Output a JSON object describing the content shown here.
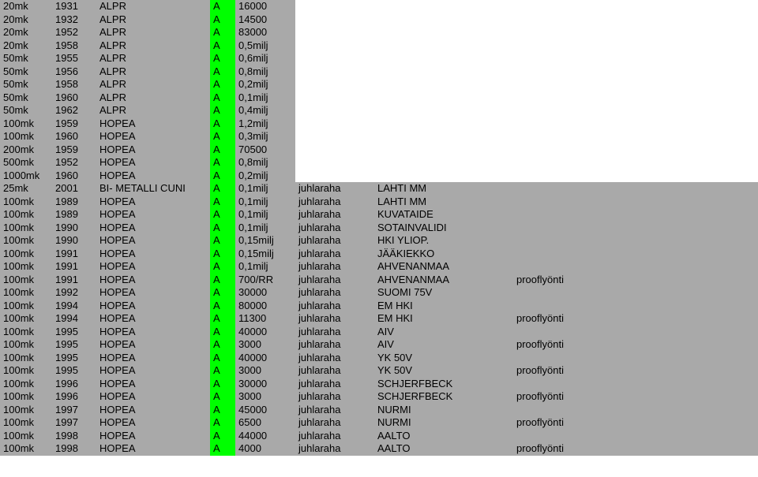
{
  "colors": {
    "gray_bg": "#a9a9a9",
    "green_bg": "#00ff00",
    "text": "#000000"
  },
  "columns": [
    {
      "key": "denom",
      "width": 58
    },
    {
      "key": "year",
      "width": 48
    },
    {
      "key": "metal",
      "width": 136
    },
    {
      "key": "grade",
      "width": 24
    },
    {
      "key": "qty",
      "width": 68
    },
    {
      "key": "type",
      "width": 92
    },
    {
      "key": "desc",
      "width": 168
    },
    {
      "key": "extra",
      "width": 120
    }
  ],
  "rows": [
    {
      "denom": "20mk",
      "year": "1931",
      "metal": "ALPR",
      "grade": "A",
      "grade_bg": "green",
      "qty": "16000",
      "type": "",
      "desc": "",
      "extra": "",
      "bg": "gray",
      "right_wide": false
    },
    {
      "denom": "20mk",
      "year": "1932",
      "metal": "ALPR",
      "grade": "A",
      "grade_bg": "green",
      "qty": "14500",
      "type": "",
      "desc": "",
      "extra": "",
      "bg": "gray",
      "right_wide": false
    },
    {
      "denom": "20mk",
      "year": "1952",
      "metal": "ALPR",
      "grade": "A",
      "grade_bg": "green",
      "qty": "83000",
      "type": "",
      "desc": "",
      "extra": "",
      "bg": "gray",
      "right_wide": false
    },
    {
      "denom": "20mk",
      "year": "1958",
      "metal": "ALPR",
      "grade": "A",
      "grade_bg": "green",
      "qty": "0,5milj",
      "type": "",
      "desc": "",
      "extra": "",
      "bg": "gray",
      "right_wide": false
    },
    {
      "denom": "50mk",
      "year": "1955",
      "metal": "ALPR",
      "grade": "A",
      "grade_bg": "green",
      "qty": "0,6milj",
      "type": "",
      "desc": "",
      "extra": "",
      "bg": "gray",
      "right_wide": false
    },
    {
      "denom": "50mk",
      "year": "1956",
      "metal": "ALPR",
      "grade": "A",
      "grade_bg": "green",
      "qty": "0,8milj",
      "type": "",
      "desc": "",
      "extra": "",
      "bg": "gray",
      "right_wide": false
    },
    {
      "denom": "50mk",
      "year": "1958",
      "metal": "ALPR",
      "grade": "A",
      "grade_bg": "green",
      "qty": "0,2milj",
      "type": "",
      "desc": "",
      "extra": "",
      "bg": "gray",
      "right_wide": false
    },
    {
      "denom": "50mk",
      "year": "1960",
      "metal": "ALPR",
      "grade": "A",
      "grade_bg": "green",
      "qty": "0,1milj",
      "type": "",
      "desc": "",
      "extra": "",
      "bg": "gray",
      "right_wide": false
    },
    {
      "denom": "50mk",
      "year": "1962",
      "metal": "ALPR",
      "grade": "A",
      "grade_bg": "green",
      "qty": "0,4milj",
      "type": "",
      "desc": "",
      "extra": "",
      "bg": "gray",
      "right_wide": false
    },
    {
      "denom": "100mk",
      "year": "1959",
      "metal": "HOPEA",
      "grade": "A",
      "grade_bg": "green",
      "qty": "1,2milj",
      "type": "",
      "desc": "",
      "extra": "",
      "bg": "gray",
      "right_wide": false
    },
    {
      "denom": "100mk",
      "year": "1960",
      "metal": "HOPEA",
      "grade": "A",
      "grade_bg": "green",
      "qty": "0,3milj",
      "type": "",
      "desc": "",
      "extra": "",
      "bg": "gray",
      "right_wide": false
    },
    {
      "denom": "200mk",
      "year": "1959",
      "metal": "HOPEA",
      "grade": "A",
      "grade_bg": "green",
      "qty": "70500",
      "type": "",
      "desc": "",
      "extra": "",
      "bg": "gray",
      "right_wide": false
    },
    {
      "denom": "500mk",
      "year": "1952",
      "metal": "HOPEA",
      "grade": "A",
      "grade_bg": "green",
      "qty": "0,8milj",
      "type": "",
      "desc": "",
      "extra": "",
      "bg": "gray",
      "right_wide": false
    },
    {
      "denom": "1000mk",
      "year": "1960",
      "metal": "HOPEA",
      "grade": "A",
      "grade_bg": "green",
      "qty": "0,2milj",
      "type": "",
      "desc": "",
      "extra": "",
      "bg": "gray",
      "right_wide": false
    },
    {
      "denom": "25mk",
      "year": "2001",
      "metal": "BI- METALLI CUNI",
      "grade": "A",
      "grade_bg": "green",
      "qty": "0,1milj",
      "type": "juhlaraha",
      "desc": "LAHTI MM",
      "extra": "",
      "bg": "gray",
      "right_wide": true
    },
    {
      "denom": "100mk",
      "year": "1989",
      "metal": "HOPEA",
      "grade": "A",
      "grade_bg": "green",
      "qty": "0,1milj",
      "type": "juhlaraha",
      "desc": "LAHTI MM",
      "extra": "",
      "bg": "gray",
      "right_wide": true
    },
    {
      "denom": "100mk",
      "year": "1989",
      "metal": "HOPEA",
      "grade": "A",
      "grade_bg": "green",
      "qty": "0,1milj",
      "type": "juhlaraha",
      "desc": "KUVATAIDE",
      "extra": "",
      "bg": "gray",
      "right_wide": true
    },
    {
      "denom": "100mk",
      "year": "1990",
      "metal": "HOPEA",
      "grade": "A",
      "grade_bg": "green",
      "qty": "0,1milj",
      "type": "juhlaraha",
      "desc": "SOTAINVALIDI",
      "extra": "",
      "bg": "gray",
      "right_wide": true
    },
    {
      "denom": "100mk",
      "year": "1990",
      "metal": "HOPEA",
      "grade": "A",
      "grade_bg": "green",
      "qty": "0,15milj",
      "type": "juhlaraha",
      "desc": "HKI YLIOP.",
      "extra": "",
      "bg": "gray",
      "right_wide": true
    },
    {
      "denom": "100mk",
      "year": "1991",
      "metal": "HOPEA",
      "grade": "A",
      "grade_bg": "green",
      "qty": "0,15milj",
      "type": "juhlaraha",
      "desc": "JÄÄKIEKKO",
      "extra": "",
      "bg": "gray",
      "right_wide": true
    },
    {
      "denom": "100mk",
      "year": "1991",
      "metal": "HOPEA",
      "grade": "A",
      "grade_bg": "green",
      "qty": "0,1milj",
      "type": "juhlaraha",
      "desc": "AHVENANMAA",
      "extra": "",
      "bg": "gray",
      "right_wide": true
    },
    {
      "denom": "100mk",
      "year": "1991",
      "metal": "HOPEA",
      "grade": "A",
      "grade_bg": "green",
      "qty": "700/RR",
      "type": "juhlaraha",
      "desc": "AHVENANMAA",
      "extra": "prooflyönti",
      "bg": "gray",
      "right_wide": true
    },
    {
      "denom": "100mk",
      "year": "1992",
      "metal": "HOPEA",
      "grade": "A",
      "grade_bg": "green",
      "qty": "30000",
      "type": "juhlaraha",
      "desc": "SUOMI 75V",
      "extra": "",
      "bg": "gray",
      "right_wide": true
    },
    {
      "denom": "100mk",
      "year": "1994",
      "metal": "HOPEA",
      "grade": "A",
      "grade_bg": "green",
      "qty": "80000",
      "type": "juhlaraha",
      "desc": "EM HKI",
      "extra": "",
      "bg": "gray",
      "right_wide": true
    },
    {
      "denom": "100mk",
      "year": "1994",
      "metal": "HOPEA",
      "grade": "A",
      "grade_bg": "green",
      "qty": "11300",
      "type": "juhlaraha",
      "desc": "EM HKI",
      "extra": "prooflyönti",
      "bg": "gray",
      "right_wide": true
    },
    {
      "denom": "100mk",
      "year": "1995",
      "metal": "HOPEA",
      "grade": "A",
      "grade_bg": "green",
      "qty": "40000",
      "type": "juhlaraha",
      "desc": "AIV",
      "extra": "",
      "bg": "gray",
      "right_wide": true
    },
    {
      "denom": "100mk",
      "year": "1995",
      "metal": "HOPEA",
      "grade": "A",
      "grade_bg": "green",
      "qty": "3000",
      "type": "juhlaraha",
      "desc": "AIV",
      "extra": "prooflyönti",
      "bg": "gray",
      "right_wide": true
    },
    {
      "denom": "100mk",
      "year": "1995",
      "metal": "HOPEA",
      "grade": "A",
      "grade_bg": "green",
      "qty": "40000",
      "type": "juhlaraha",
      "desc": "YK 50V",
      "extra": "",
      "bg": "gray",
      "right_wide": true
    },
    {
      "denom": "100mk",
      "year": "1995",
      "metal": "HOPEA",
      "grade": "A",
      "grade_bg": "green",
      "qty": "3000",
      "type": "juhlaraha",
      "desc": "YK 50V",
      "extra": "prooflyönti",
      "bg": "gray",
      "right_wide": true
    },
    {
      "denom": "100mk",
      "year": "1996",
      "metal": "HOPEA",
      "grade": "A",
      "grade_bg": "green",
      "qty": "30000",
      "type": "juhlaraha",
      "desc": "SCHJERFBECK",
      "extra": "",
      "bg": "gray",
      "right_wide": true
    },
    {
      "denom": "100mk",
      "year": "1996",
      "metal": "HOPEA",
      "grade": "A",
      "grade_bg": "green",
      "qty": "3000",
      "type": "juhlaraha",
      "desc": "SCHJERFBECK",
      "extra": "prooflyönti",
      "bg": "gray",
      "right_wide": true
    },
    {
      "denom": "100mk",
      "year": "1997",
      "metal": "HOPEA",
      "grade": "A",
      "grade_bg": "green",
      "qty": "45000",
      "type": "juhlaraha",
      "desc": "NURMI",
      "extra": "",
      "bg": "gray",
      "right_wide": true
    },
    {
      "denom": "100mk",
      "year": "1997",
      "metal": "HOPEA",
      "grade": "A",
      "grade_bg": "green",
      "qty": "6500",
      "type": "juhlaraha",
      "desc": "NURMI",
      "extra": "prooflyönti",
      "bg": "gray",
      "right_wide": true
    },
    {
      "denom": "100mk",
      "year": "1998",
      "metal": "HOPEA",
      "grade": "A",
      "grade_bg": "green",
      "qty": "44000",
      "type": "juhlaraha",
      "desc": "AALTO",
      "extra": "",
      "bg": "gray",
      "right_wide": true
    },
    {
      "denom": "100mk",
      "year": "1998",
      "metal": "HOPEA",
      "grade": "A",
      "grade_bg": "green",
      "qty": "4000",
      "type": "juhlaraha",
      "desc": "AALTO",
      "extra": "prooflyönti",
      "bg": "gray",
      "right_wide": true
    }
  ]
}
